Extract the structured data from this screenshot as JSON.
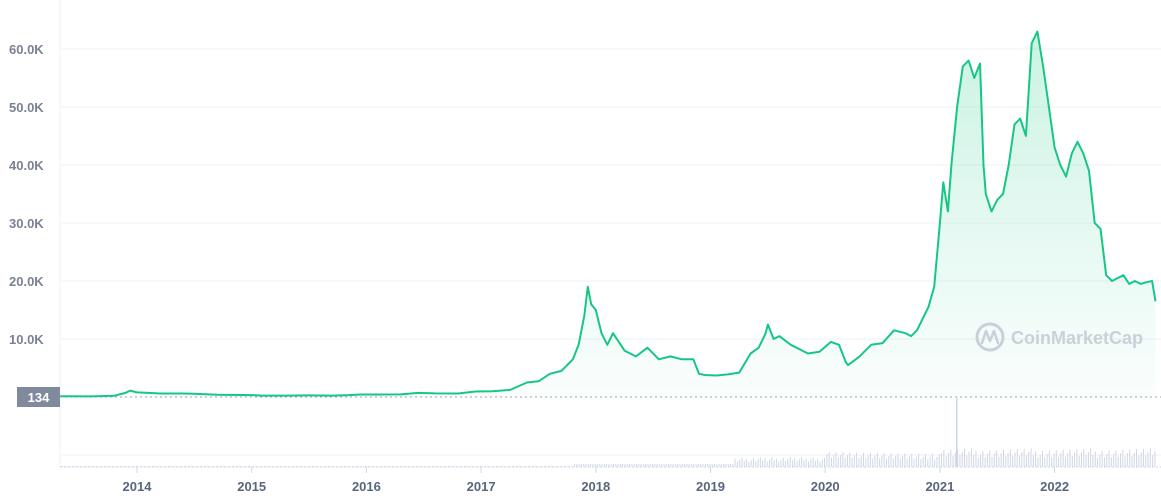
{
  "chart_data": {
    "type": "area",
    "ylim": [
      0,
      66000
    ],
    "y_ticks": [
      "10.0K",
      "20.0K",
      "30.0K",
      "40.0K",
      "50.0K",
      "60.0K"
    ],
    "y_tick_values": [
      10000,
      20000,
      30000,
      40000,
      50000,
      60000
    ],
    "x_ticks": [
      "2014",
      "2015",
      "2016",
      "2017",
      "2018",
      "2019",
      "2020",
      "2021",
      "2022"
    ],
    "x_tick_values": [
      2014,
      2015,
      2016,
      2017,
      2018,
      2019,
      2020,
      2021,
      2022
    ],
    "xlim": [
      2013.33,
      2022.88
    ],
    "start_marker": "134",
    "watermark": "CoinMarketCap",
    "grid": true,
    "colors": {
      "line": "#16c784",
      "fill": "#16c784",
      "grid": "#eff2f5",
      "marker_bg": "#808a9d",
      "volume": "#cfd6e4"
    },
    "series": [
      {
        "x": [
          2013.33,
          2013.6,
          2013.8,
          2013.9,
          2013.94,
          2014.0,
          2014.1,
          2014.2,
          2014.4,
          2014.5,
          2014.7,
          2014.9,
          2015.0,
          2015.1,
          2015.3,
          2015.5,
          2015.7,
          2015.85,
          2015.95,
          2016.1,
          2016.3,
          2016.45,
          2016.6,
          2016.8,
          2016.95,
          2017.1,
          2017.25,
          2017.4,
          2017.5,
          2017.6,
          2017.7,
          2017.8,
          2017.85,
          2017.9,
          2017.93,
          2017.96,
          2018.0,
          2018.05,
          2018.1,
          2018.15,
          2018.25,
          2018.35,
          2018.45,
          2018.55,
          2018.65,
          2018.75,
          2018.85,
          2018.9,
          2018.95,
          2019.05,
          2019.15,
          2019.25,
          2019.35,
          2019.42,
          2019.48,
          2019.5,
          2019.55,
          2019.6,
          2019.7,
          2019.8,
          2019.85,
          2019.95,
          2020.05,
          2020.12,
          2020.18,
          2020.2,
          2020.3,
          2020.4,
          2020.5,
          2020.6,
          2020.7,
          2020.75,
          2020.8,
          2020.85,
          2020.9,
          2020.95,
          2021.0,
          2021.03,
          2021.07,
          2021.1,
          2021.15,
          2021.2,
          2021.25,
          2021.3,
          2021.35,
          2021.38,
          2021.4,
          2021.45,
          2021.5,
          2021.55,
          2021.6,
          2021.65,
          2021.7,
          2021.75,
          2021.8,
          2021.85,
          2021.9,
          2021.95,
          2022.0,
          2022.05,
          2022.1,
          2022.15,
          2022.2,
          2022.25,
          2022.3,
          2022.35,
          2022.4,
          2022.45,
          2022.5,
          2022.55,
          2022.6,
          2022.65,
          2022.7,
          2022.75,
          2022.8,
          2022.85,
          2022.88
        ],
        "y": [
          134,
          110,
          200,
          700,
          1100,
          800,
          700,
          600,
          600,
          550,
          400,
          350,
          320,
          250,
          240,
          280,
          240,
          330,
          430,
          430,
          450,
          700,
          620,
          600,
          950,
          1000,
          1200,
          2500,
          2700,
          4000,
          4500,
          6500,
          9000,
          14000,
          19000,
          16000,
          15000,
          11000,
          9000,
          11000,
          8000,
          7000,
          8500,
          6500,
          7000,
          6500,
          6500,
          4000,
          3800,
          3700,
          3900,
          4200,
          7500,
          8500,
          11000,
          12500,
          10000,
          10500,
          9000,
          8000,
          7500,
          7800,
          9500,
          9000,
          6000,
          5500,
          7000,
          9000,
          9300,
          11500,
          11000,
          10500,
          11500,
          13500,
          15500,
          19000,
          30000,
          37000,
          32000,
          40000,
          50000,
          57000,
          58000,
          55000,
          57500,
          40000,
          35000,
          32000,
          34000,
          35000,
          40000,
          47000,
          48000,
          45000,
          61000,
          63000,
          57000,
          50000,
          43000,
          40000,
          38000,
          42000,
          44000,
          42000,
          39000,
          30000,
          29000,
          21000,
          20000,
          20500,
          21000,
          19500,
          20000,
          19500,
          19800,
          20000,
          16500
        ]
      }
    ]
  }
}
